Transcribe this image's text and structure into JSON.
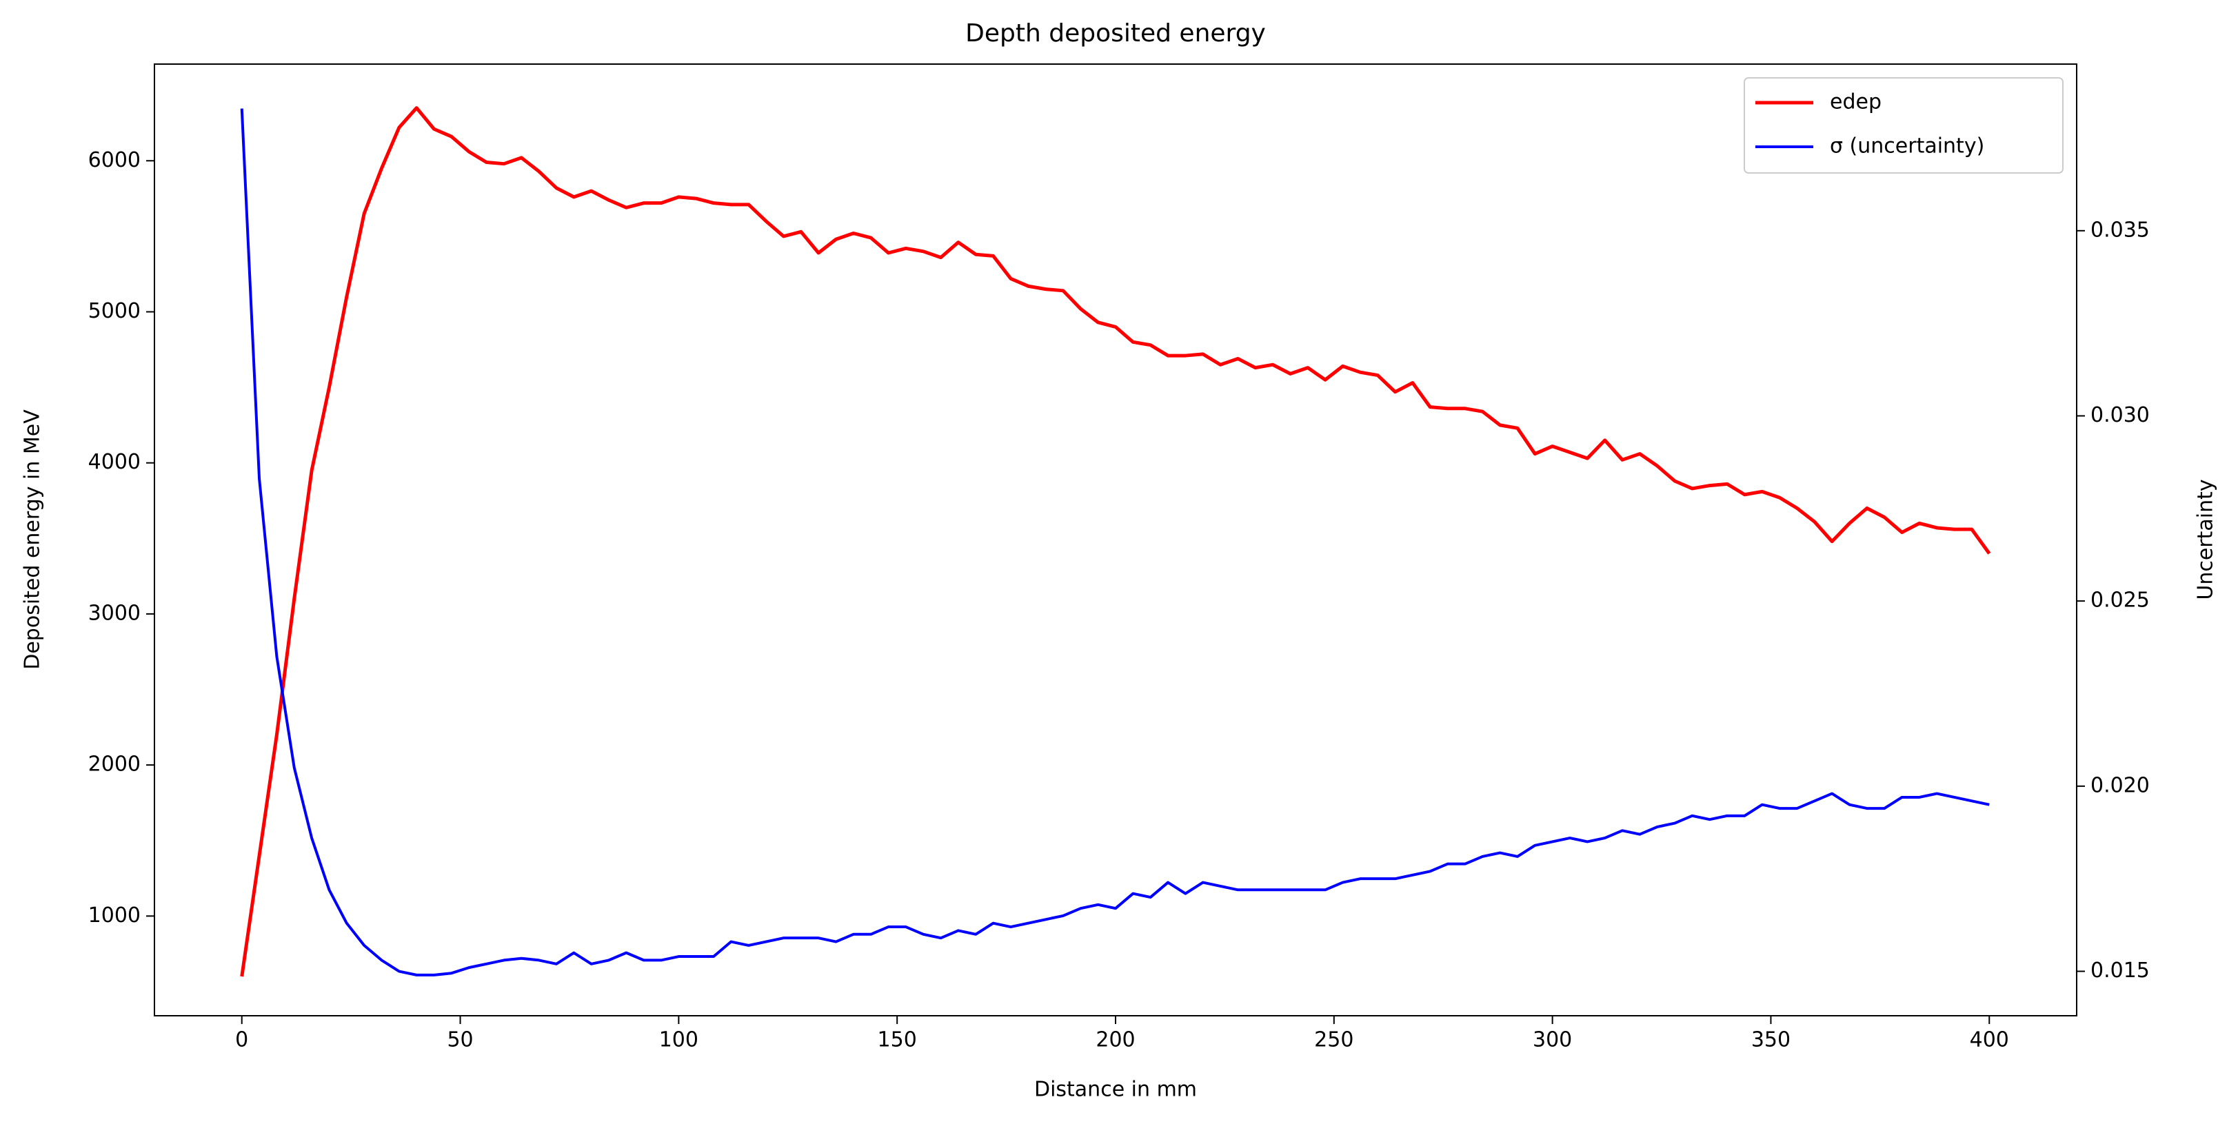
{
  "chart_data": {
    "type": "line",
    "title": "Depth deposited energy",
    "xlabel": "Distance in mm",
    "ylabel": "Deposited energy in MeV",
    "y2label": "Uncertainty",
    "x": [
      0,
      4,
      8,
      12,
      16,
      20,
      24,
      28,
      32,
      36,
      40,
      44,
      48,
      52,
      56,
      60,
      64,
      68,
      72,
      76,
      80,
      84,
      88,
      92,
      96,
      100,
      104,
      108,
      112,
      116,
      120,
      124,
      128,
      132,
      136,
      140,
      144,
      148,
      152,
      156,
      160,
      164,
      168,
      172,
      176,
      180,
      184,
      188,
      192,
      196,
      200,
      204,
      208,
      212,
      216,
      220,
      224,
      228,
      232,
      236,
      240,
      244,
      248,
      252,
      256,
      260,
      264,
      268,
      272,
      276,
      280,
      284,
      288,
      292,
      296,
      300,
      304,
      308,
      312,
      316,
      320,
      324,
      328,
      332,
      336,
      340,
      344,
      348,
      352,
      356,
      360,
      364,
      368,
      372,
      376,
      380,
      384,
      388,
      392,
      396,
      400
    ],
    "series": [
      {
        "name": "edep",
        "color": "#ff0000",
        "axis": "y",
        "values": [
          600,
          1400,
          2200,
          3100,
          3950,
          4500,
          5100,
          5650,
          5950,
          6220,
          6350,
          6210,
          6160,
          6060,
          5990,
          5980,
          6020,
          5930,
          5820,
          5760,
          5800,
          5740,
          5690,
          5720,
          5720,
          5760,
          5750,
          5720,
          5710,
          5710,
          5600,
          5500,
          5530,
          5390,
          5480,
          5520,
          5490,
          5390,
          5420,
          5400,
          5360,
          5460,
          5380,
          5370,
          5220,
          5170,
          5150,
          5140,
          5020,
          4930,
          4900,
          4800,
          4780,
          4710,
          4710,
          4720,
          4650,
          4690,
          4630,
          4650,
          4590,
          4630,
          4550,
          4640,
          4600,
          4580,
          4470,
          4530,
          4370,
          4360,
          4360,
          4340,
          4250,
          4230,
          4060,
          4110,
          4070,
          4030,
          4150,
          4020,
          4060,
          3980,
          3880,
          3830,
          3850,
          3860,
          3790,
          3810,
          3770,
          3700,
          3610,
          3480,
          3600,
          3700,
          3640,
          3540,
          3600,
          3570,
          3560,
          3560,
          3400
        ]
      },
      {
        "name": "σ (uncertainty)",
        "color": "#0000ff",
        "axis": "y2",
        "values": [
          0.0383,
          0.0283,
          0.0235,
          0.0205,
          0.0186,
          0.0172,
          0.0163,
          0.0157,
          0.0153,
          0.015,
          0.0149,
          0.0149,
          0.01495,
          0.0151,
          0.0152,
          0.0153,
          0.01535,
          0.0153,
          0.0152,
          0.0155,
          0.0152,
          0.0153,
          0.0155,
          0.0153,
          0.0153,
          0.0154,
          0.0154,
          0.0154,
          0.0158,
          0.0157,
          0.0158,
          0.0159,
          0.0159,
          0.0159,
          0.0158,
          0.016,
          0.016,
          0.0162,
          0.0162,
          0.016,
          0.0159,
          0.0161,
          0.016,
          0.0163,
          0.0162,
          0.0163,
          0.0164,
          0.0165,
          0.0167,
          0.0168,
          0.0167,
          0.0171,
          0.017,
          0.0174,
          0.0171,
          0.0174,
          0.0173,
          0.0172,
          0.0172,
          0.0172,
          0.0172,
          0.0172,
          0.0172,
          0.0174,
          0.0175,
          0.0175,
          0.0175,
          0.0176,
          0.0177,
          0.0179,
          0.0179,
          0.0181,
          0.0182,
          0.0181,
          0.0184,
          0.0185,
          0.0186,
          0.0185,
          0.0186,
          0.0188,
          0.0187,
          0.0189,
          0.019,
          0.0192,
          0.0191,
          0.0192,
          0.0192,
          0.0195,
          0.0194,
          0.0194,
          0.0196,
          0.0198,
          0.0195,
          0.0194,
          0.0194,
          0.0197,
          0.0197,
          0.0198,
          0.0197,
          0.0196,
          0.0195
        ]
      }
    ],
    "xlim": [
      -20,
      420
    ],
    "xticks": [
      0,
      50,
      100,
      150,
      200,
      250,
      300,
      350,
      400
    ],
    "ylim": [
      340,
      6640
    ],
    "yticks": [
      1000,
      2000,
      3000,
      4000,
      5000,
      6000
    ],
    "y2lim": [
      0.0138,
      0.0395
    ],
    "y2ticks": [
      0.015,
      {
        "value": 0.02,
        "label": "0.020"
      },
      0.025,
      {
        "value": 0.03,
        "label": "0.030"
      },
      0.035
    ],
    "legend": "upper right"
  }
}
